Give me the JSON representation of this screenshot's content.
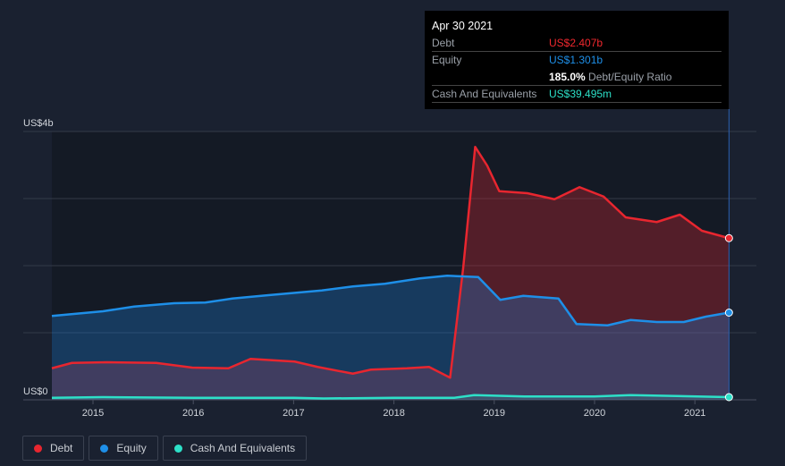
{
  "tooltip": {
    "date": "Apr 30 2021",
    "debt_label": "Debt",
    "debt_value": "US$2.407b",
    "equity_label": "Equity",
    "equity_value": "US$1.301b",
    "ratio_value": "185.0%",
    "ratio_label": "Debt/Equity Ratio",
    "cash_label": "Cash And Equivalents",
    "cash_value": "US$39.495m"
  },
  "legend": [
    {
      "label": "Debt",
      "color": "#e8262f"
    },
    {
      "label": "Equity",
      "color": "#1e8fe8"
    },
    {
      "label": "Cash And Equivalents",
      "color": "#2de0c8"
    }
  ],
  "chart_data": {
    "type": "area",
    "ylim": [
      0,
      4
    ],
    "yunit": "US$ billions",
    "ytick_labels": [
      {
        "v": 4,
        "label": "US$4b"
      },
      {
        "v": 0,
        "label": "US$0"
      }
    ],
    "gridlines": [
      0,
      1,
      2,
      3,
      4
    ],
    "xlim": [
      2014.59,
      2021.34
    ],
    "xticks": [
      2015,
      2016,
      2017,
      2018,
      2019,
      2020,
      2021
    ],
    "xtick_labels": [
      "2015",
      "2016",
      "2017",
      "2018",
      "2019",
      "2020",
      "2021"
    ],
    "series": [
      {
        "name": "Debt",
        "color": "#e8262f",
        "points": [
          [
            2014.59,
            0.47
          ],
          [
            2014.79,
            0.55
          ],
          [
            2015.14,
            0.56
          ],
          [
            2015.63,
            0.55
          ],
          [
            2015.99,
            0.48
          ],
          [
            2016.35,
            0.47
          ],
          [
            2016.57,
            0.61
          ],
          [
            2017.01,
            0.57
          ],
          [
            2017.24,
            0.49
          ],
          [
            2017.59,
            0.39
          ],
          [
            2017.77,
            0.45
          ],
          [
            2018.13,
            0.47
          ],
          [
            2018.35,
            0.49
          ],
          [
            2018.56,
            0.33
          ],
          [
            2018.69,
            1.96
          ],
          [
            2018.81,
            3.77
          ],
          [
            2018.93,
            3.49
          ],
          [
            2019.05,
            3.11
          ],
          [
            2019.33,
            3.08
          ],
          [
            2019.6,
            2.99
          ],
          [
            2019.85,
            3.17
          ],
          [
            2020.09,
            3.03
          ],
          [
            2020.31,
            2.72
          ],
          [
            2020.62,
            2.65
          ],
          [
            2020.85,
            2.76
          ],
          [
            2021.07,
            2.52
          ],
          [
            2021.34,
            2.41
          ]
        ]
      },
      {
        "name": "Equity",
        "color": "#1e8fe8",
        "points": [
          [
            2014.59,
            1.25
          ],
          [
            2015.1,
            1.32
          ],
          [
            2015.41,
            1.39
          ],
          [
            2015.81,
            1.44
          ],
          [
            2016.12,
            1.45
          ],
          [
            2016.39,
            1.51
          ],
          [
            2016.75,
            1.56
          ],
          [
            2017.28,
            1.63
          ],
          [
            2017.59,
            1.69
          ],
          [
            2017.91,
            1.73
          ],
          [
            2018.26,
            1.81
          ],
          [
            2018.53,
            1.85
          ],
          [
            2018.84,
            1.83
          ],
          [
            2019.06,
            1.49
          ],
          [
            2019.29,
            1.55
          ],
          [
            2019.64,
            1.51
          ],
          [
            2019.82,
            1.13
          ],
          [
            2020.13,
            1.11
          ],
          [
            2020.36,
            1.19
          ],
          [
            2020.62,
            1.16
          ],
          [
            2020.89,
            1.16
          ],
          [
            2021.11,
            1.24
          ],
          [
            2021.34,
            1.3
          ]
        ]
      },
      {
        "name": "Cash And Equivalents",
        "color": "#2de0c8",
        "points": [
          [
            2014.59,
            0.03
          ],
          [
            2015.1,
            0.04
          ],
          [
            2016,
            0.03
          ],
          [
            2017,
            0.03
          ],
          [
            2017.3,
            0.02
          ],
          [
            2018,
            0.03
          ],
          [
            2018.6,
            0.03
          ],
          [
            2018.8,
            0.07
          ],
          [
            2019.3,
            0.05
          ],
          [
            2020,
            0.05
          ],
          [
            2020.36,
            0.07
          ],
          [
            2021.34,
            0.04
          ]
        ]
      }
    ]
  }
}
